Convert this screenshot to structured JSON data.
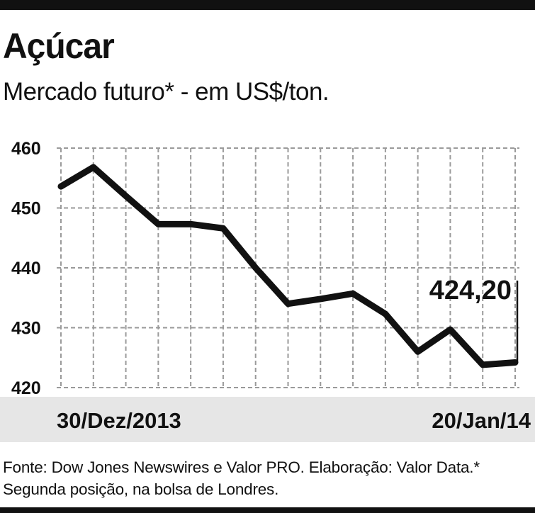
{
  "header": {
    "title": "Açúcar",
    "subtitle": "Mercado futuro* - em US$/ton."
  },
  "footer": {
    "source": "Fonte: Dow Jones Newswires e Valor PRO. Elaboração: Valor Data.* Segunda posição, na bolsa de Londres."
  },
  "chart_data": {
    "type": "line",
    "title": "Açúcar",
    "subtitle": "Mercado futuro* - em US$/ton.",
    "x_start_label": "30/Dez/2013",
    "x_end_label": "20/Jan/14",
    "ylim": [
      420,
      460
    ],
    "yticks": [
      420,
      430,
      440,
      450,
      460
    ],
    "grid": true,
    "series": [
      {
        "values": [
          453.6,
          456.8,
          452.0,
          447.3,
          447.3,
          446.6,
          440.0,
          434.0,
          434.8,
          435.7,
          432.3,
          426.0,
          429.7,
          423.8,
          424.2
        ],
        "color": "#111111"
      }
    ],
    "annotation": {
      "text": "424,20",
      "value": 424.2
    }
  }
}
